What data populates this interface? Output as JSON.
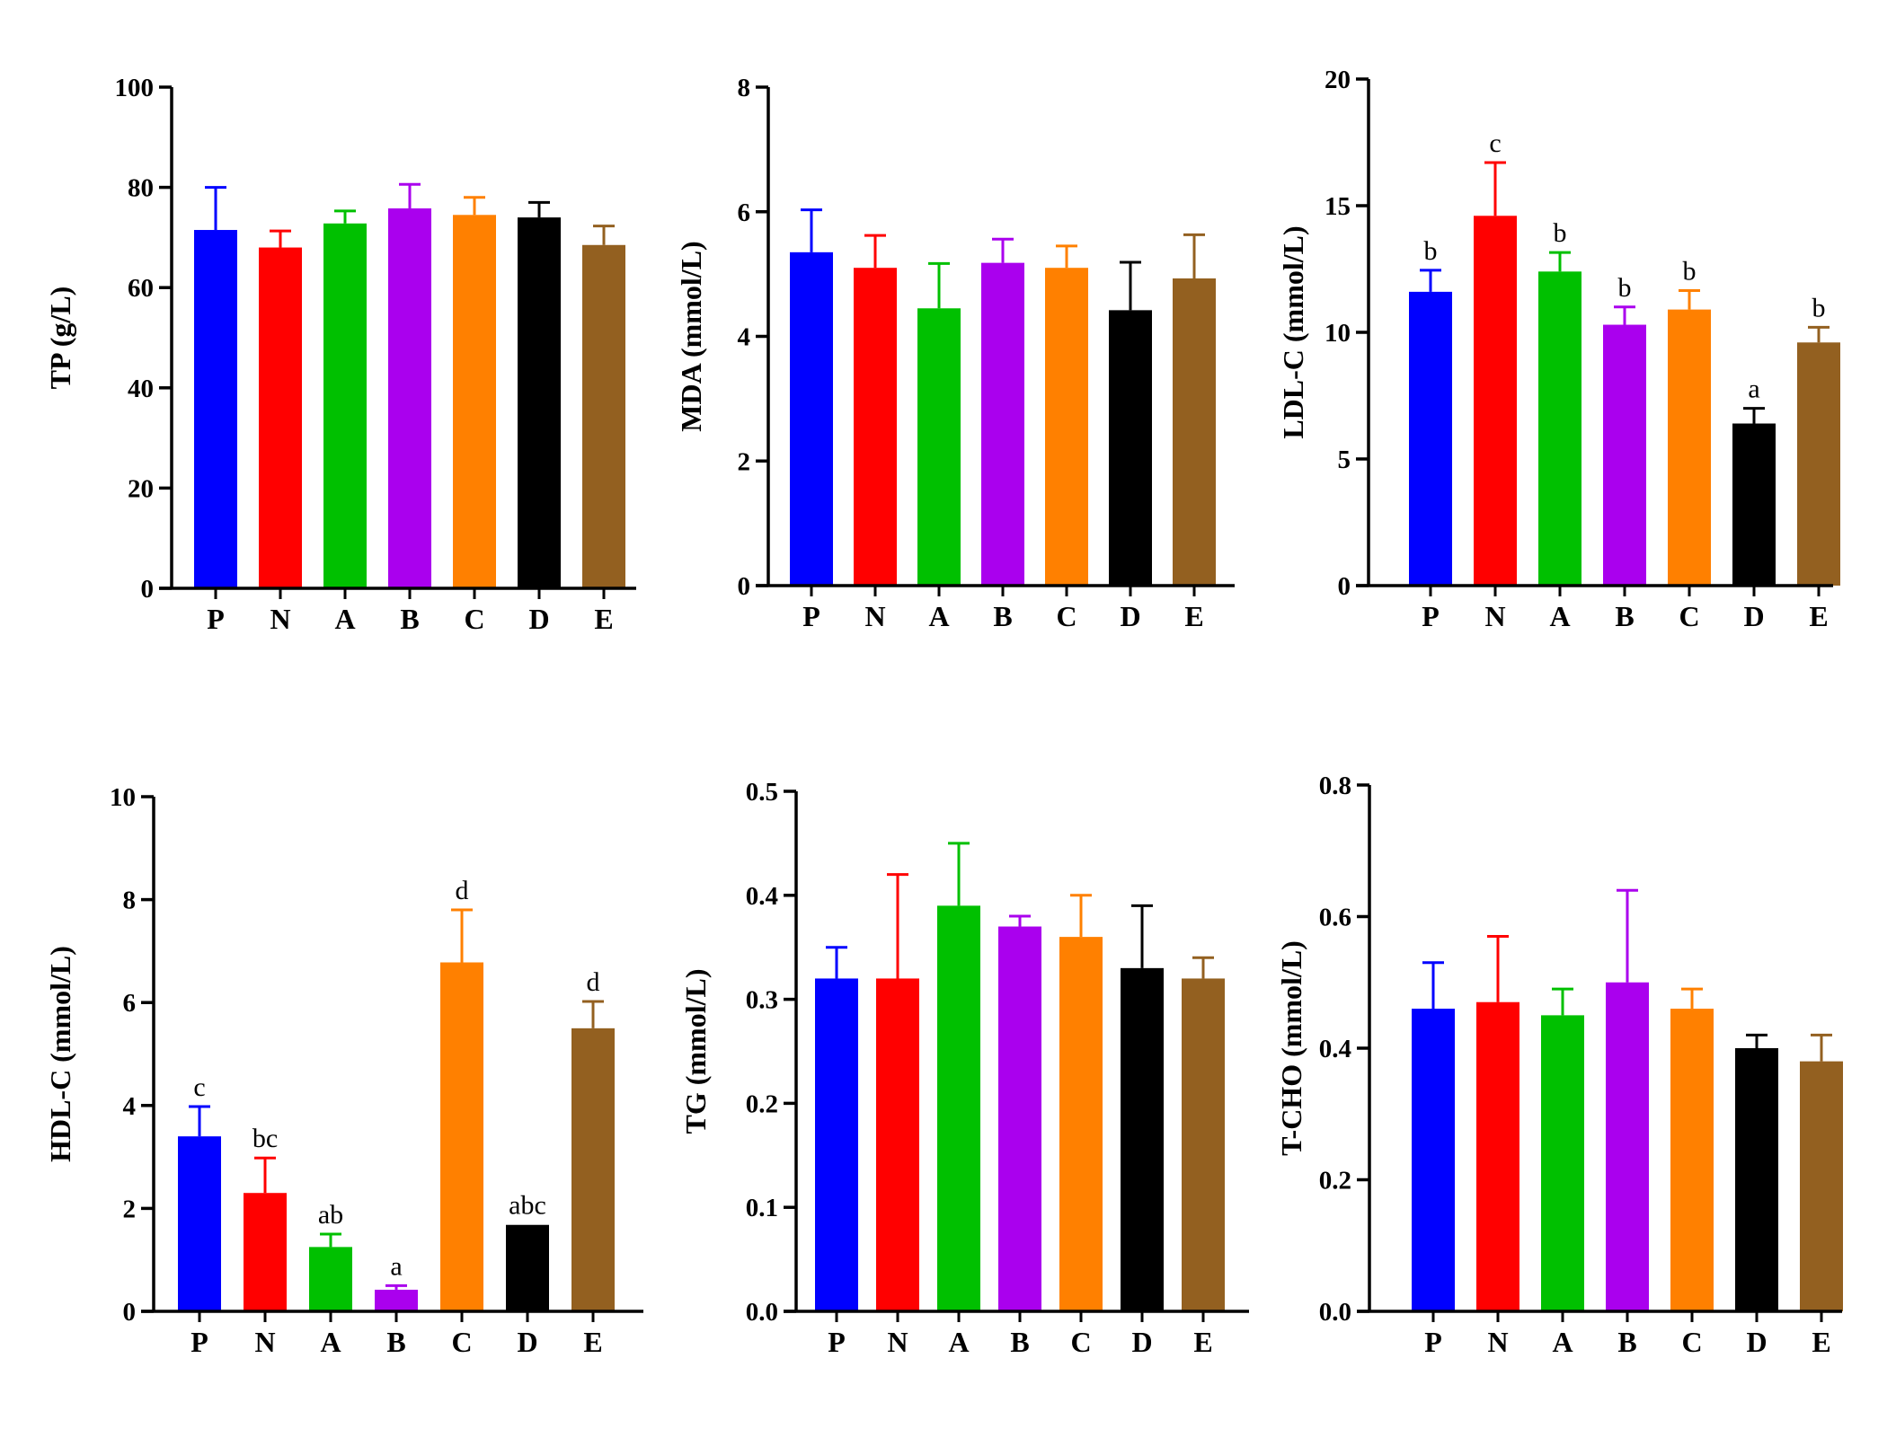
{
  "colors": {
    "P": "#0000ff",
    "N": "#ff0000",
    "A": "#00c000",
    "B": "#aa00ee",
    "C": "#ff8000",
    "D": "#000000",
    "E": "#936020"
  },
  "chart_data": [
    {
      "type": "bar",
      "ylabel": "TP (g/L)",
      "categories": [
        "P",
        "N",
        "A",
        "B",
        "C",
        "D",
        "E"
      ],
      "values": [
        71.5,
        68,
        72.8,
        75.8,
        74.5,
        74,
        68.5
      ],
      "errors": [
        8.5,
        3.3,
        2.5,
        4.8,
        3.5,
        3,
        3.8
      ],
      "ylim": [
        0,
        100
      ],
      "yticks": [
        0,
        20,
        40,
        60,
        80,
        100
      ],
      "ytick_labels": [
        "0",
        "20",
        "40",
        "60",
        "80",
        "100"
      ],
      "sig_letters": [
        "",
        "",
        "",
        "",
        "",
        "",
        ""
      ]
    },
    {
      "type": "bar",
      "ylabel": "MDA (mmol/L)",
      "categories": [
        "P",
        "N",
        "A",
        "B",
        "C",
        "D",
        "E"
      ],
      "values": [
        5.35,
        5.1,
        4.45,
        5.18,
        5.1,
        4.42,
        4.93
      ],
      "errors": [
        0.68,
        0.52,
        0.72,
        0.38,
        0.35,
        0.77,
        0.7
      ],
      "ylim": [
        0,
        8
      ],
      "yticks": [
        0,
        2,
        4,
        6,
        8
      ],
      "ytick_labels": [
        "0",
        "2",
        "4",
        "6",
        "8"
      ],
      "sig_letters": [
        "",
        "",
        "",
        "",
        "",
        "",
        ""
      ]
    },
    {
      "type": "bar",
      "ylabel": "LDL-C (mmol/L)",
      "categories": [
        "P",
        "N",
        "A",
        "B",
        "C",
        "D",
        "E"
      ],
      "values": [
        11.6,
        14.6,
        12.4,
        10.3,
        10.9,
        6.4,
        9.6
      ],
      "errors": [
        0.85,
        2.1,
        0.75,
        0.7,
        0.75,
        0.6,
        0.6
      ],
      "ylim": [
        0,
        20
      ],
      "yticks": [
        0,
        5,
        10,
        15,
        20
      ],
      "ytick_labels": [
        "0",
        "5",
        "10",
        "15",
        "20"
      ],
      "sig_letters": [
        "b",
        "c",
        "b",
        "b",
        "b",
        "a",
        "b"
      ]
    },
    {
      "type": "bar",
      "ylabel": "HDL-C (mmol/L)",
      "categories": [
        "P",
        "N",
        "A",
        "B",
        "C",
        "D",
        "E"
      ],
      "values": [
        3.4,
        2.3,
        1.25,
        0.42,
        6.78,
        1.68,
        5.5
      ],
      "errors": [
        0.58,
        0.68,
        0.25,
        0.08,
        1.02,
        0.0,
        0.52
      ],
      "ylim": [
        0,
        10
      ],
      "yticks": [
        0,
        2,
        4,
        6,
        8,
        10
      ],
      "ytick_labels": [
        "0",
        "2",
        "4",
        "6",
        "8",
        "10"
      ],
      "sig_letters": [
        "c",
        "bc",
        "ab",
        "a",
        "d",
        "abc",
        "d"
      ]
    },
    {
      "type": "bar",
      "ylabel": "TG (mmol/L)",
      "categories": [
        "P",
        "N",
        "A",
        "B",
        "C",
        "D",
        "E"
      ],
      "values": [
        0.32,
        0.32,
        0.39,
        0.37,
        0.36,
        0.33,
        0.32
      ],
      "errors": [
        0.03,
        0.1,
        0.06,
        0.01,
        0.04,
        0.06,
        0.02
      ],
      "ylim": [
        0,
        0.5
      ],
      "yticks": [
        0,
        0.1,
        0.2,
        0.3,
        0.4,
        0.5
      ],
      "ytick_labels": [
        "0.0",
        "0.1",
        "0.2",
        "0.3",
        "0.4",
        "0.5"
      ],
      "sig_letters": [
        "",
        "",
        "",
        "",
        "",
        "",
        ""
      ]
    },
    {
      "type": "bar",
      "ylabel": "T-CHO (mmol/L)",
      "categories": [
        "P",
        "N",
        "A",
        "B",
        "C",
        "D",
        "E"
      ],
      "values": [
        0.46,
        0.47,
        0.45,
        0.5,
        0.46,
        0.4,
        0.38
      ],
      "errors": [
        0.07,
        0.1,
        0.04,
        0.14,
        0.03,
        0.02,
        0.04
      ],
      "ylim": [
        0,
        0.8
      ],
      "yticks": [
        0,
        0.2,
        0.4,
        0.6,
        0.8
      ],
      "ytick_labels": [
        "0.0",
        "0.2",
        "0.4",
        "0.6",
        "0.8"
      ],
      "sig_letters": [
        "",
        "",
        "",
        "",
        "",
        "",
        ""
      ]
    }
  ]
}
